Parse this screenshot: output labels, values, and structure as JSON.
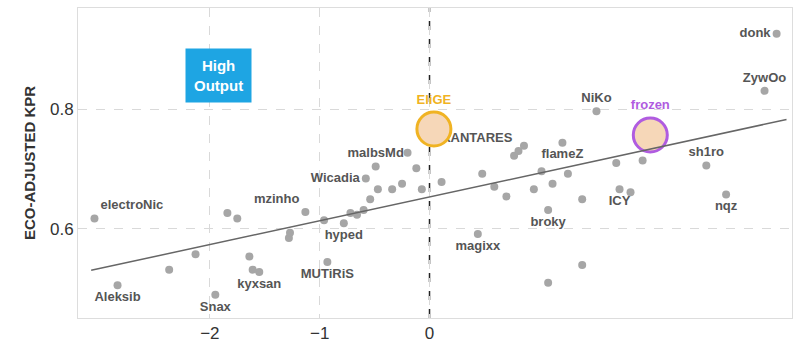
{
  "chart_data": {
    "type": "scatter",
    "ylabel": "ECO-ADJUSTED KPR",
    "xlim": [
      -3.2,
      3.3
    ],
    "ylim": [
      0.45,
      0.97
    ],
    "xticks": [
      -2,
      -1,
      0
    ],
    "yticks": [
      0.6,
      0.8
    ],
    "grid": true,
    "reference_x": 0,
    "annotations": [
      {
        "text": "High Output",
        "color": "#1ea5e3"
      }
    ],
    "series": [
      {
        "type": "scatter",
        "color": "#a6a6a6",
        "marker": "circle",
        "x": [
          3.16,
          3.05,
          1.52,
          0.81,
          1.21,
          2.52,
          2.7,
          1.73,
          1.08,
          0.44,
          -0.78,
          -0.93,
          -1.55,
          -1.95,
          -2.84,
          -3.05,
          -1.13,
          -0.58,
          -0.49,
          -2.37,
          -2.13,
          -1.84,
          -1.75,
          -1.64,
          -1.61,
          -1.28,
          -1.27,
          -0.96,
          -0.72,
          -0.66,
          -0.6,
          -0.54,
          -0.47,
          -0.34,
          -0.25,
          -0.2,
          -0.12,
          -0.07,
          0.11,
          0.48,
          0.59,
          0.7,
          0.77,
          0.86,
          0.95,
          1.02,
          1.12,
          1.26,
          1.39,
          1.7,
          1.83,
          1.94,
          1.08,
          1.39
        ],
        "y": [
          0.927,
          0.831,
          0.797,
          0.73,
          0.744,
          0.706,
          0.657,
          0.666,
          0.631,
          0.591,
          0.609,
          0.544,
          0.527,
          0.489,
          0.505,
          0.617,
          0.628,
          0.684,
          0.704,
          0.531,
          0.557,
          0.626,
          0.617,
          0.553,
          0.531,
          0.584,
          0.593,
          0.614,
          0.626,
          0.623,
          0.631,
          0.649,
          0.666,
          0.666,
          0.675,
          0.727,
          0.701,
          0.666,
          0.678,
          0.692,
          0.67,
          0.654,
          0.722,
          0.739,
          0.666,
          0.696,
          0.675,
          0.692,
          0.649,
          0.71,
          0.661,
          0.714,
          0.509,
          0.539
        ],
        "labels": [
          "donk",
          "ZywOo",
          "NiKo",
          "XANTARES",
          "flameZ",
          "sh1ro",
          "nqz",
          "ICY",
          "broky",
          "magixx",
          "hyped",
          "MUTiRiS",
          "kyxsan",
          "Snax",
          "Aleksib",
          "electroNic",
          "mzinho",
          "Wicadia",
          "malbsMd",
          null,
          null,
          null,
          null,
          null,
          null,
          null,
          null,
          null,
          null,
          null,
          null,
          null,
          null,
          null,
          null,
          null,
          null,
          null,
          null,
          null,
          null,
          null,
          null,
          null,
          null,
          null,
          null,
          null,
          null,
          null,
          null,
          null,
          null,
          null
        ]
      },
      {
        "type": "scatter",
        "color": "#f0b323",
        "marker": "circle",
        "x": [
          0.04
        ],
        "y": [
          0.767
        ],
        "labels": [
          "EliGE"
        ]
      },
      {
        "type": "scatter",
        "color": "#b05ce0",
        "marker": "circle",
        "x": [
          2.01
        ],
        "y": [
          0.757
        ],
        "labels": [
          "frozen"
        ]
      },
      {
        "type": "line",
        "color": "#666666",
        "line_style": "solid",
        "x": [
          -3.08,
          3.25
        ],
        "y": [
          0.53,
          0.783
        ]
      }
    ]
  }
}
